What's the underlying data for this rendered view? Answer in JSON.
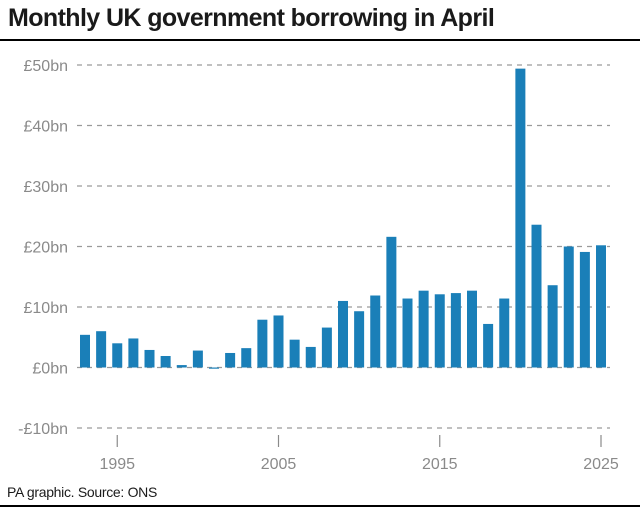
{
  "title": "Monthly UK government borrowing in April",
  "source": "PA graphic. Source: ONS",
  "chart_data": {
    "type": "bar",
    "title": "Monthly UK government borrowing in April",
    "xlabel": "",
    "ylabel": "",
    "color": "#1a7fb8",
    "gridline_color": "#9a9a9a",
    "ylim": [
      -10,
      50
    ],
    "xlim": [
      1993,
      2025
    ],
    "grid": true,
    "y_ticks": [
      {
        "value": 50,
        "label": "£50bn"
      },
      {
        "value": 40,
        "label": "£40bn"
      },
      {
        "value": 30,
        "label": "£30bn"
      },
      {
        "value": 20,
        "label": "£20bn"
      },
      {
        "value": 10,
        "label": "£10bn"
      },
      {
        "value": 0,
        "label": "£0bn"
      },
      {
        "value": -10,
        "label": "-£10bn"
      }
    ],
    "x_ticks": [
      {
        "value": 1995,
        "label": "1995"
      },
      {
        "value": 2005,
        "label": "2005"
      },
      {
        "value": 2015,
        "label": "2015"
      },
      {
        "value": 2025,
        "label": "2025"
      }
    ],
    "categories": [
      1993,
      1994,
      1995,
      1996,
      1997,
      1998,
      1999,
      2000,
      2001,
      2002,
      2003,
      2004,
      2005,
      2006,
      2007,
      2008,
      2009,
      2010,
      2011,
      2012,
      2013,
      2014,
      2015,
      2016,
      2017,
      2018,
      2019,
      2020,
      2021,
      2022,
      2023,
      2024,
      2025
    ],
    "values": [
      5.4,
      6.0,
      4.0,
      4.8,
      2.9,
      1.9,
      0.4,
      2.8,
      -0.2,
      2.4,
      3.2,
      7.9,
      8.6,
      4.6,
      3.4,
      6.6,
      11.0,
      9.3,
      11.9,
      21.6,
      11.4,
      12.7,
      12.1,
      12.3,
      12.7,
      7.2,
      11.4,
      49.4,
      23.6,
      13.6,
      20.0,
      19.1,
      20.2
    ]
  }
}
